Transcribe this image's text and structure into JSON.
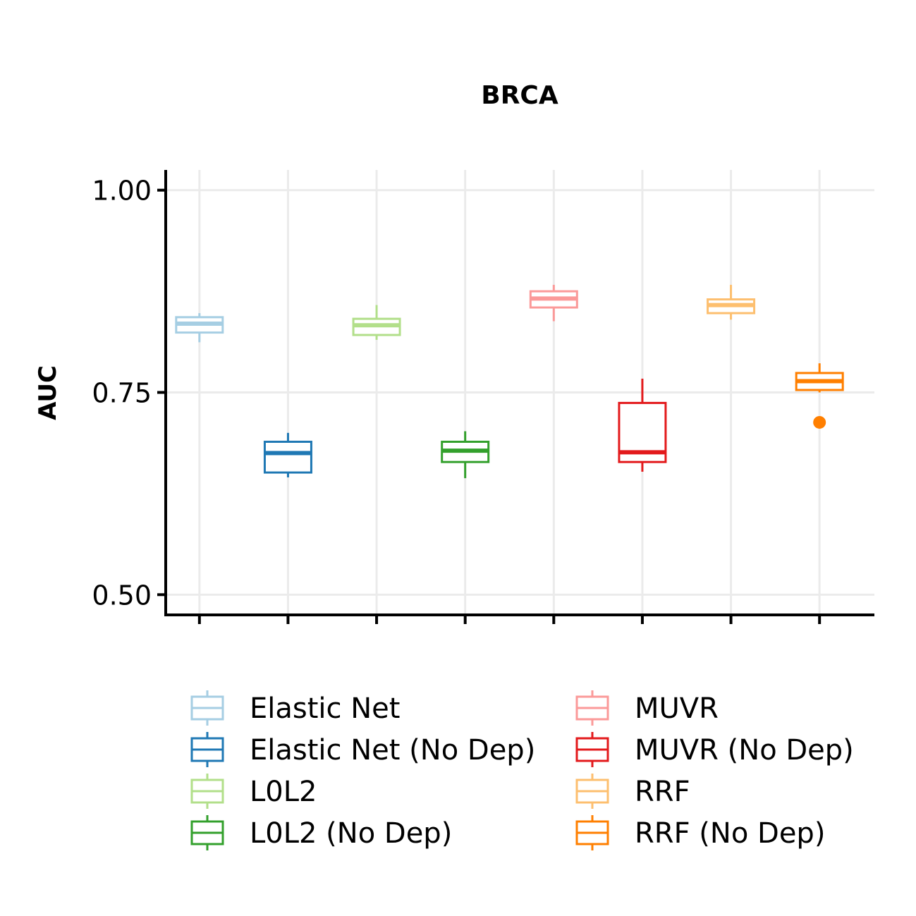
{
  "chart_data": {
    "type": "box",
    "title": "BRCA",
    "ylabel": "AUC",
    "xlabel": "",
    "ylim": [
      0.475,
      1.025
    ],
    "yticks": [
      0.5,
      0.75,
      1.0
    ],
    "ytick_labels": [
      "0.50",
      "0.75",
      "1.00"
    ],
    "grid": true,
    "legend_position": "bottom",
    "legend_columns": 2,
    "series": [
      {
        "name": "Elastic Net",
        "color": "#a6cee3",
        "whisker_low": 0.812,
        "q1": 0.824,
        "median": 0.835,
        "q3": 0.843,
        "whisker_high": 0.848,
        "outliers": []
      },
      {
        "name": "Elastic Net (No Dep)",
        "color": "#1f78b4",
        "whisker_low": 0.645,
        "q1": 0.651,
        "median": 0.675,
        "q3": 0.689,
        "whisker_high": 0.7,
        "outliers": []
      },
      {
        "name": "L0L2",
        "color": "#b2df8a",
        "whisker_low": 0.815,
        "q1": 0.821,
        "median": 0.833,
        "q3": 0.841,
        "whisker_high": 0.858,
        "outliers": []
      },
      {
        "name": "L0L2 (No Dep)",
        "color": "#33a02c",
        "whisker_low": 0.644,
        "q1": 0.664,
        "median": 0.678,
        "q3": 0.689,
        "whisker_high": 0.702,
        "outliers": []
      },
      {
        "name": "MUVR",
        "color": "#fb9a99",
        "whisker_low": 0.838,
        "q1": 0.855,
        "median": 0.866,
        "q3": 0.875,
        "whisker_high": 0.883,
        "outliers": []
      },
      {
        "name": "MUVR (No Dep)",
        "color": "#e31a1c",
        "whisker_low": 0.652,
        "q1": 0.664,
        "median": 0.676,
        "q3": 0.737,
        "whisker_high": 0.767,
        "outliers": []
      },
      {
        "name": "RRF",
        "color": "#fdbf6f",
        "whisker_low": 0.84,
        "q1": 0.848,
        "median": 0.858,
        "q3": 0.865,
        "whisker_high": 0.883,
        "outliers": []
      },
      {
        "name": "RRF (No Dep)",
        "color": "#ff7f00",
        "whisker_low": 0.75,
        "q1": 0.753,
        "median": 0.764,
        "q3": 0.774,
        "whisker_high": 0.786,
        "outliers": [
          0.713
        ]
      }
    ]
  }
}
